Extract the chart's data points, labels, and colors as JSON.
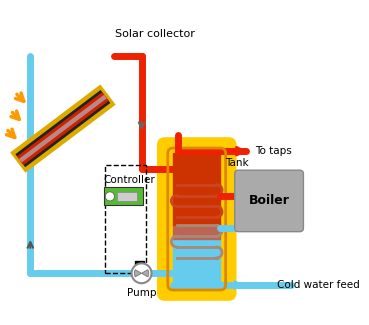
{
  "background_color": "#ffffff",
  "solar_collector_label": "Solar collector",
  "controller_label": "Controller",
  "pump_label": "Pump",
  "tank_label": "Tank",
  "boiler_label": "Boiler",
  "to_taps_label": "To taps",
  "cold_water_label": "Cold water feed",
  "colors": {
    "sky_blue": "#66ccee",
    "red": "#ee2200",
    "orange": "#ff9900",
    "yellow": "#ffcc00",
    "green": "#55bb33",
    "dark_gray": "#666666",
    "boiler_gray": "#aaaaaa",
    "solar_gold": "#ddaa00",
    "coil_color": "#cc4422",
    "coil_blue": "#88bbcc"
  },
  "layout": {
    "figw": 3.69,
    "figh": 3.25,
    "dpi": 100,
    "xlim": [
      0,
      369
    ],
    "ylim": [
      0,
      325
    ]
  }
}
